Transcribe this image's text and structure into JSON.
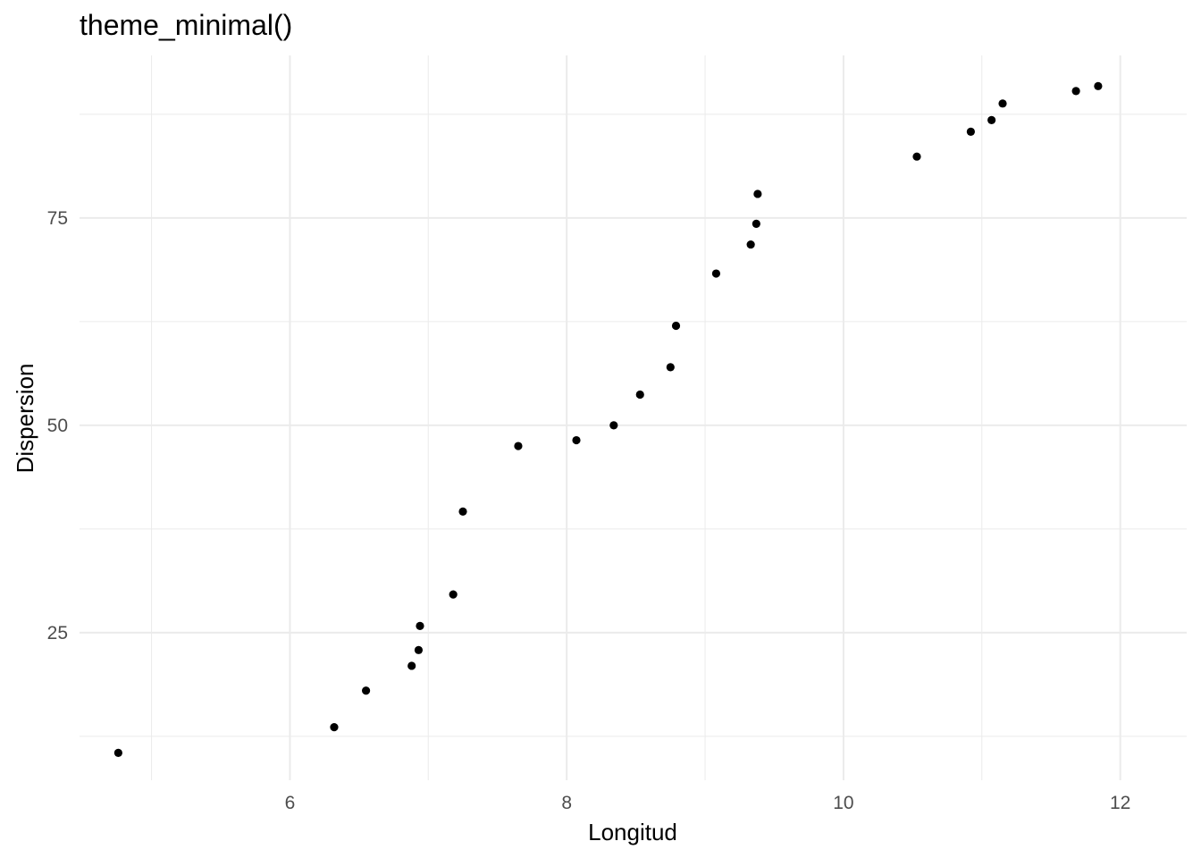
{
  "chart_data": {
    "type": "scatter",
    "title": "theme_minimal()",
    "xlabel": "Longitud",
    "ylabel": "Dispersion",
    "xlim": [
      4.48,
      12.48
    ],
    "ylim": [
      7.2,
      94.6
    ],
    "x_ticks": [
      6,
      8,
      10,
      12
    ],
    "x_minor_ticks": [
      5,
      7,
      9,
      11
    ],
    "y_ticks": [
      25,
      50,
      75
    ],
    "y_minor_ticks": [
      12.5,
      37.5,
      62.5,
      87.5
    ],
    "grid": true,
    "legend": "none",
    "point_color": "#000000",
    "grid_color": "#ebebeb",
    "points": [
      {
        "x": 4.76,
        "y": 10.5
      },
      {
        "x": 6.32,
        "y": 13.6
      },
      {
        "x": 6.55,
        "y": 18.0
      },
      {
        "x": 6.88,
        "y": 21.0
      },
      {
        "x": 6.93,
        "y": 22.9
      },
      {
        "x": 6.94,
        "y": 25.8
      },
      {
        "x": 7.18,
        "y": 29.6
      },
      {
        "x": 7.25,
        "y": 39.6
      },
      {
        "x": 7.65,
        "y": 47.5
      },
      {
        "x": 8.07,
        "y": 48.2
      },
      {
        "x": 8.34,
        "y": 50.0
      },
      {
        "x": 8.53,
        "y": 53.7
      },
      {
        "x": 8.75,
        "y": 57.0
      },
      {
        "x": 8.79,
        "y": 62.0
      },
      {
        "x": 9.08,
        "y": 68.3
      },
      {
        "x": 9.33,
        "y": 71.8
      },
      {
        "x": 9.37,
        "y": 74.3
      },
      {
        "x": 9.38,
        "y": 77.9
      },
      {
        "x": 10.53,
        "y": 82.4
      },
      {
        "x": 10.92,
        "y": 85.4
      },
      {
        "x": 11.07,
        "y": 86.8
      },
      {
        "x": 11.15,
        "y": 88.8
      },
      {
        "x": 11.68,
        "y": 90.3
      },
      {
        "x": 11.84,
        "y": 90.9
      }
    ]
  }
}
